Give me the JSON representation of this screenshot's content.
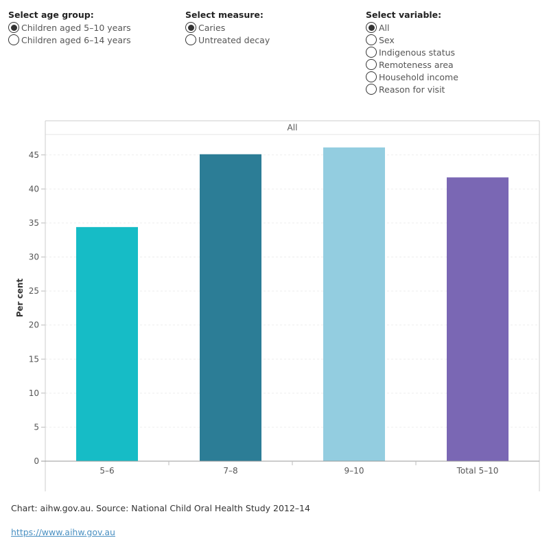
{
  "controls": {
    "age_group": {
      "title": "Select age group:",
      "options": [
        "Children aged 5–10 years",
        "Children aged 6–14 years"
      ],
      "selected": 0
    },
    "measure": {
      "title": "Select measure:",
      "options": [
        "Caries",
        "Untreated decay"
      ],
      "selected": 0
    },
    "variable": {
      "title": "Select variable:",
      "options": [
        "All",
        "Sex",
        "Indigenous status",
        "Remoteness area",
        "Household income",
        "Reason for visit"
      ],
      "selected": 0
    }
  },
  "chart_data": {
    "type": "bar",
    "panel_title": "All",
    "categories": [
      "5–6",
      "7–8",
      "9–10",
      "Total 5–10"
    ],
    "values": [
      34.4,
      45.1,
      46.1,
      41.7
    ],
    "colors": [
      "#16bcc6",
      "#2c7d96",
      "#93cde0",
      "#7a67b4"
    ],
    "ylabel": "Per cent",
    "xlabel": "",
    "ylim": [
      0,
      48
    ],
    "yticks": [
      0,
      5,
      10,
      15,
      20,
      25,
      30,
      35,
      40,
      45
    ],
    "grid": true
  },
  "footer": {
    "source": "Chart: aihw.gov.au. Source: National Child Oral Health Study 2012–14",
    "link": "https://www.aihw.gov.au"
  }
}
